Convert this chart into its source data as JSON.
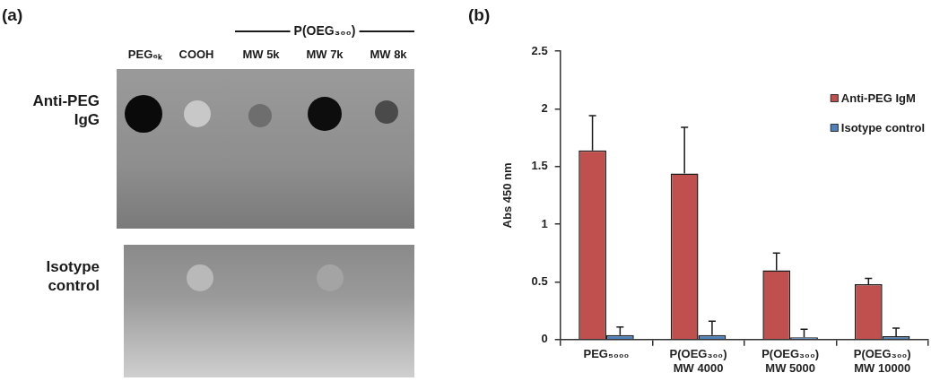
{
  "chart_data": [
    {
      "type": "other",
      "title": "(a)",
      "annotations": [
        "P(OEG₃₀₀)",
        "PEG₆ₖ",
        "COOH",
        "MW 5k",
        "MW 7k",
        "MW 8k",
        "Anti-PEG\nIgG",
        "Isotype\ncontrol"
      ]
    },
    {
      "type": "bar",
      "title": "(b)",
      "ylabel": "Abs 450 nm",
      "categories": [
        "PEG₅₀₀₀",
        "P(OEG₃₀₀)\nMW 4000",
        "P(OEG₃₀₀)\nMW 5000",
        "P(OEG₃₀₀)\nMW 10000"
      ],
      "series": [
        {
          "name": "Anti-PEG IgM",
          "color": "#c0504d",
          "values": [
            1.64,
            1.44,
            0.6,
            0.48
          ],
          "errors": [
            [
              1.64,
              1.94
            ],
            [
              1.44,
              1.84
            ],
            [
              0.6,
              0.75
            ],
            [
              0.48,
              0.53
            ]
          ]
        },
        {
          "name": "Isotype control",
          "color": "#4f81bd",
          "values": [
            0.04,
            0.04,
            0.02,
            0.03
          ],
          "errors": [
            [
              0.04,
              0.11
            ],
            [
              0.04,
              0.16
            ],
            [
              0.02,
              0.09
            ],
            [
              0.03,
              0.1
            ]
          ]
        }
      ],
      "ylim": [
        0,
        2.5
      ],
      "yticks": [
        0,
        0.5,
        1,
        1.5,
        2,
        2.5
      ],
      "legend": "top right",
      "grid": false
    }
  ]
}
